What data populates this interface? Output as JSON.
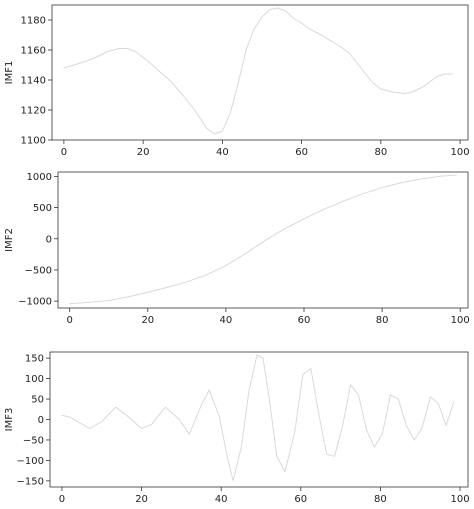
{
  "chart_data": [
    {
      "type": "line",
      "title": "",
      "xlabel": "",
      "ylabel": "IMF1",
      "xlim": [
        -3,
        102
      ],
      "ylim": [
        1100,
        1190
      ],
      "xticks": [
        0,
        20,
        40,
        60,
        80,
        100
      ],
      "yticks": [
        1100,
        1120,
        1140,
        1160,
        1180
      ],
      "line_color": "#d9d9d9",
      "x": [
        0,
        5,
        8,
        11,
        14,
        16,
        18,
        21,
        24,
        27,
        30,
        33,
        36,
        38,
        40,
        42,
        44,
        46,
        48,
        50,
        52,
        54,
        56,
        58,
        60,
        62,
        65,
        68,
        70,
        72,
        75,
        78,
        80,
        83,
        86,
        88,
        91,
        94,
        96,
        98
      ],
      "y": [
        1148,
        1152,
        1155,
        1159,
        1161,
        1161,
        1159,
        1153,
        1146,
        1139,
        1130,
        1120,
        1108,
        1104,
        1106,
        1118,
        1138,
        1160,
        1174,
        1182,
        1187,
        1188,
        1186,
        1181,
        1178,
        1174,
        1170,
        1165,
        1162,
        1158,
        1148,
        1138,
        1134,
        1132,
        1131,
        1132,
        1136,
        1142,
        1144,
        1144
      ]
    },
    {
      "type": "line",
      "title": "",
      "xlabel": "",
      "ylabel": "IMF2",
      "xlim": [
        -3,
        102
      ],
      "ylim": [
        -1110,
        1070
      ],
      "xticks": [
        0,
        20,
        40,
        60,
        80,
        100
      ],
      "yticks": [
        -1000,
        -500,
        0,
        500,
        1000
      ],
      "line_color": "#d9d9d9",
      "x": [
        0,
        5,
        10,
        15,
        20,
        25,
        30,
        35,
        40,
        45,
        50,
        55,
        60,
        65,
        70,
        75,
        80,
        85,
        90,
        95,
        99
      ],
      "y": [
        -1040,
        -1020,
        -990,
        -930,
        -860,
        -780,
        -690,
        -580,
        -430,
        -240,
        -30,
        160,
        320,
        470,
        600,
        720,
        820,
        900,
        960,
        1005,
        1020
      ]
    },
    {
      "type": "line",
      "title": "",
      "xlabel": "",
      "ylabel": "IMF3",
      "xlim": [
        -3,
        102
      ],
      "ylim": [
        -165,
        165
      ],
      "xticks": [
        0,
        20,
        40,
        60,
        80,
        100
      ],
      "yticks": [
        -150,
        -100,
        -50,
        0,
        50,
        100,
        150
      ],
      "line_color": "#d9d9d9",
      "x": [
        0,
        2,
        4.5,
        7,
        10,
        13.5,
        16.5,
        20,
        22.5,
        26,
        29.5,
        32,
        35,
        37,
        39.5,
        41.5,
        43,
        45,
        47,
        49,
        50.5,
        52,
        54,
        56,
        58.5,
        60.5,
        62.5,
        64.5,
        66.5,
        68.5,
        70.5,
        72.5,
        74.5,
        76.5,
        78.5,
        80.5,
        82.5,
        84.5,
        86.5,
        88.5,
        90.5,
        92.5,
        94.5,
        96.5,
        98.5
      ],
      "y": [
        10,
        6,
        -8,
        -22,
        -5,
        30,
        8,
        -22,
        -12,
        30,
        0,
        -36,
        35,
        72,
        8,
        -90,
        -150,
        -70,
        70,
        158,
        150,
        55,
        -90,
        -128,
        -30,
        110,
        125,
        15,
        -85,
        -90,
        -15,
        85,
        60,
        -25,
        -68,
        -35,
        60,
        50,
        -15,
        -50,
        -20,
        55,
        40,
        -15,
        45
      ]
    }
  ]
}
